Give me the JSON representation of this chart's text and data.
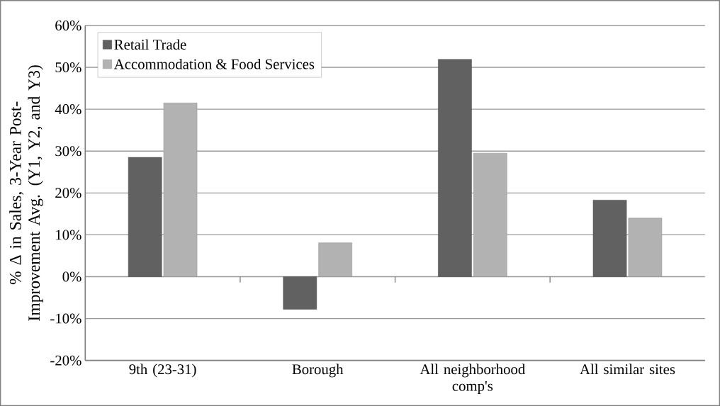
{
  "chart_data": {
    "type": "bar",
    "ylabel": "% Δ in Sales, 3-Year Post-Improvement Avg. (Y1, Y2, and Y3)",
    "categories": [
      "9th (23-31)",
      "Borough",
      "All neighborhood comp's",
      "All similar sites"
    ],
    "series": [
      {
        "name": "Retail Trade",
        "color": "#616161",
        "values": [
          28.5,
          -7.8,
          51.9,
          18.3
        ]
      },
      {
        "name": "Accommodation & Food Services",
        "color": "#b2b2b2",
        "values": [
          41.5,
          8.1,
          29.5,
          14.0
        ]
      }
    ],
    "ylim": [
      -20,
      60
    ],
    "yticks": [
      {
        "value": -20,
        "label": "-20%"
      },
      {
        "value": -10,
        "label": "-10%"
      },
      {
        "value": 0,
        "label": "0%"
      },
      {
        "value": 10,
        "label": "10%"
      },
      {
        "value": 20,
        "label": "20%"
      },
      {
        "value": 30,
        "label": "30%"
      },
      {
        "value": 40,
        "label": "40%"
      },
      {
        "value": 50,
        "label": "50%"
      },
      {
        "value": 60,
        "label": "60%"
      }
    ],
    "grid": "y",
    "legend": "top left"
  }
}
